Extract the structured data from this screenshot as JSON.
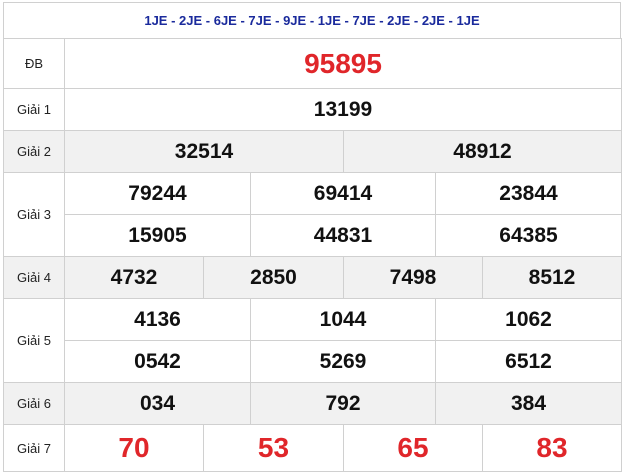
{
  "header": {
    "codes": "1JE - 2JE - 6JE - 7JE - 9JE - 1JE - 7JE - 2JE - 2JE - 1JE"
  },
  "rows": [
    {
      "label": "ĐB",
      "lines": [
        [
          "95895"
        ]
      ]
    },
    {
      "label": "Giải 1",
      "lines": [
        [
          "13199"
        ]
      ]
    },
    {
      "label": "Giải 2",
      "lines": [
        [
          "32514",
          "48912"
        ]
      ]
    },
    {
      "label": "Giải 3",
      "lines": [
        [
          "79244",
          "69414",
          "23844"
        ],
        [
          "15905",
          "44831",
          "64385"
        ]
      ]
    },
    {
      "label": "Giải 4",
      "lines": [
        [
          "4732",
          "2850",
          "7498",
          "8512"
        ]
      ]
    },
    {
      "label": "Giải 5",
      "lines": [
        [
          "4136",
          "1044",
          "1062"
        ],
        [
          "0542",
          "5269",
          "6512"
        ]
      ]
    },
    {
      "label": "Giải 6",
      "lines": [
        [
          "034",
          "792",
          "384"
        ]
      ]
    },
    {
      "label": "Giải 7",
      "lines": [
        [
          "70",
          "53",
          "65",
          "83"
        ]
      ]
    }
  ]
}
